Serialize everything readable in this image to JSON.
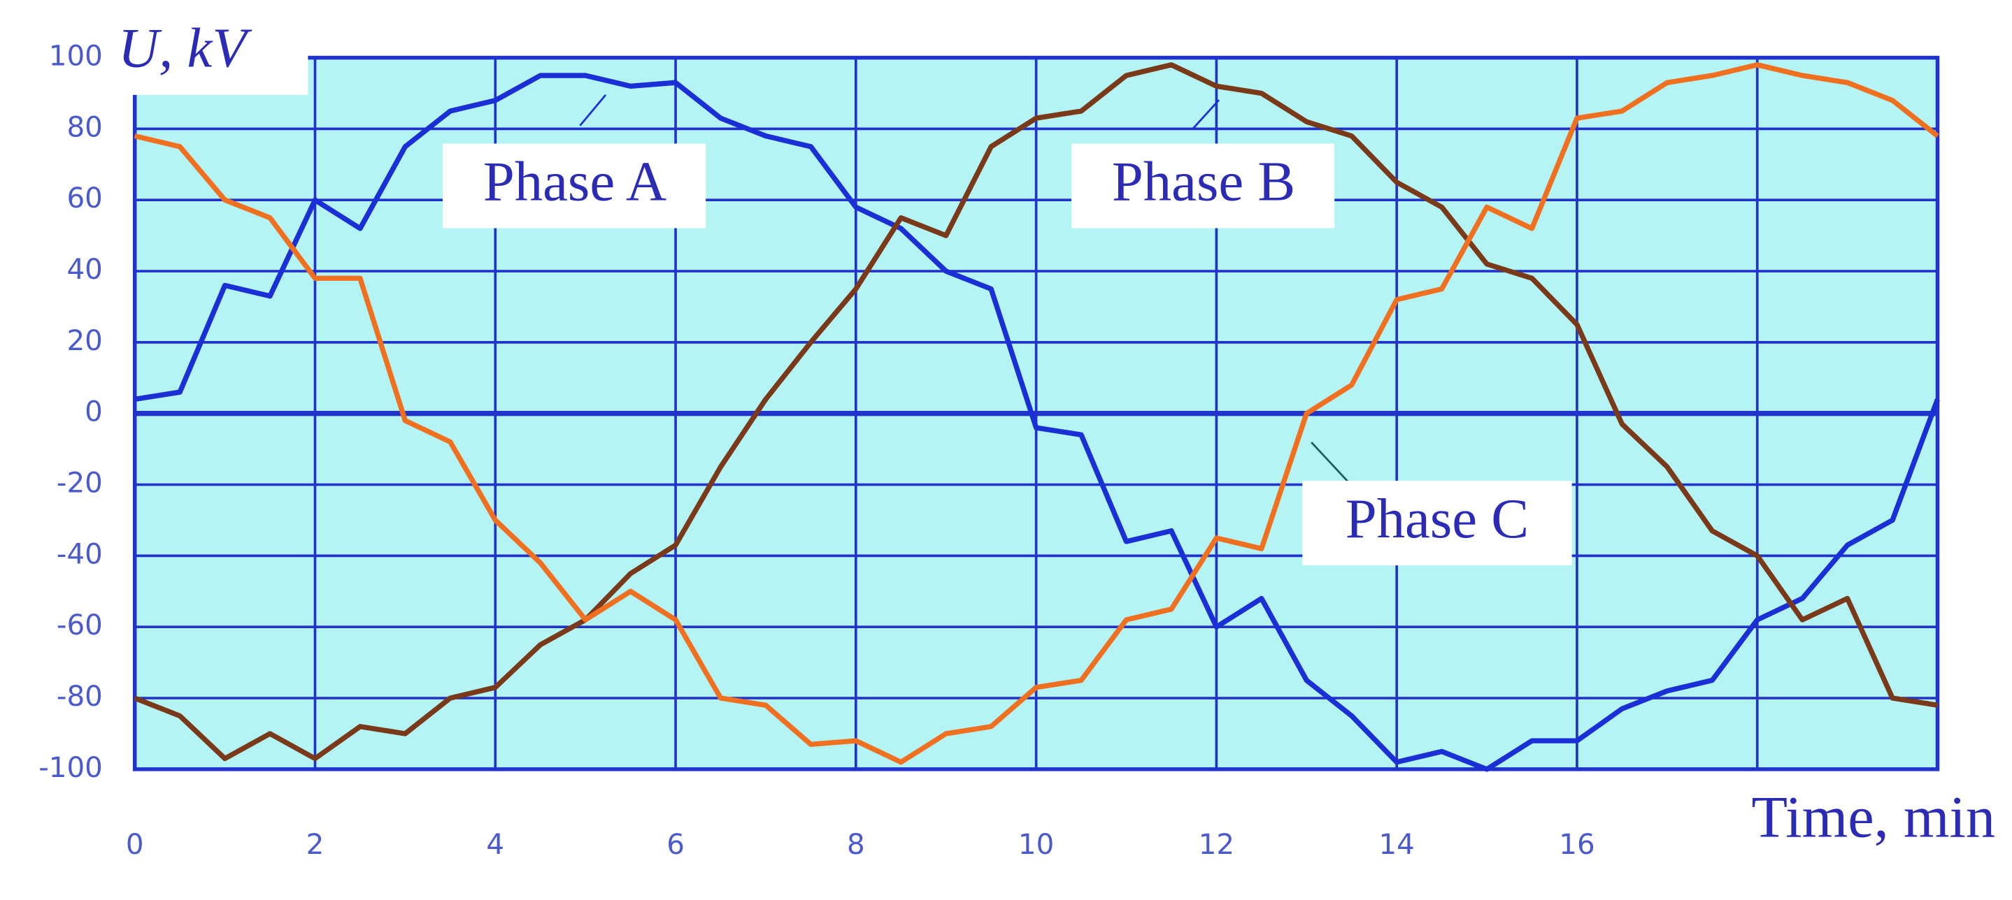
{
  "chart_data": {
    "type": "line",
    "x_label": "Time, min",
    "y_label": "U, kV",
    "x": [
      0,
      0.5,
      1,
      1.5,
      2,
      2.5,
      3,
      3.5,
      4,
      4.5,
      5,
      5.5,
      6,
      6.5,
      7,
      7.5,
      8,
      8.5,
      9,
      9.5,
      10,
      10.5,
      11,
      11.5,
      12,
      12.5,
      13,
      13.5,
      14,
      14.5,
      15,
      15.5,
      16,
      16.5,
      17,
      17.5,
      18,
      18.5,
      19,
      19.5,
      20
    ],
    "series": [
      {
        "name": "Phase A",
        "color": "#1a2fd6",
        "values": [
          4,
          6,
          36,
          33,
          60,
          52,
          75,
          85,
          88,
          95,
          95,
          92,
          93,
          83,
          78,
          75,
          58,
          52,
          40,
          35,
          -4,
          -6,
          -36,
          -33,
          -60,
          -52,
          -75,
          -85,
          -98,
          -95,
          -100,
          -92,
          -92,
          -83,
          -78,
          -75,
          -58,
          -52,
          -37,
          -30,
          4
        ]
      },
      {
        "name": "Phase B",
        "color": "#7a3a1a",
        "values": [
          -80,
          -85,
          -97,
          -90,
          -97,
          -88,
          -90,
          -80,
          -77,
          -65,
          -58,
          -45,
          -37,
          -15,
          4,
          20,
          35,
          55,
          50,
          75,
          83,
          85,
          95,
          98,
          92,
          90,
          82,
          78,
          65,
          58,
          42,
          38,
          25,
          -3,
          -15,
          -33,
          -40,
          -58,
          -52,
          -80,
          -82
        ]
      },
      {
        "name": "Phase C",
        "color": "#f07020",
        "values": [
          78,
          75,
          60,
          55,
          38,
          38,
          -2,
          -8,
          -30,
          -42,
          -58,
          -50,
          -58,
          -80,
          -82,
          -93,
          -92,
          -98,
          -90,
          -88,
          -77,
          -75,
          -58,
          -55,
          -35,
          -38,
          0,
          8,
          32,
          35,
          58,
          52,
          83,
          85,
          93,
          95,
          98,
          95,
          93,
          88,
          78
        ]
      }
    ],
    "xlim": [
      0,
      20
    ],
    "xticks": [
      0,
      2,
      4,
      6,
      8,
      10,
      12,
      14,
      16
    ],
    "xgrid": [
      0,
      2,
      4,
      6,
      8,
      10,
      12,
      14,
      16,
      18,
      20
    ],
    "ylim": [
      -100,
      100
    ],
    "yticks": [
      -100,
      -80,
      -60,
      -40,
      -20,
      0,
      20,
      40,
      60,
      80,
      100
    ],
    "grid": true,
    "plot_background": "#b4f4f4",
    "grid_color": "#2233cc"
  }
}
